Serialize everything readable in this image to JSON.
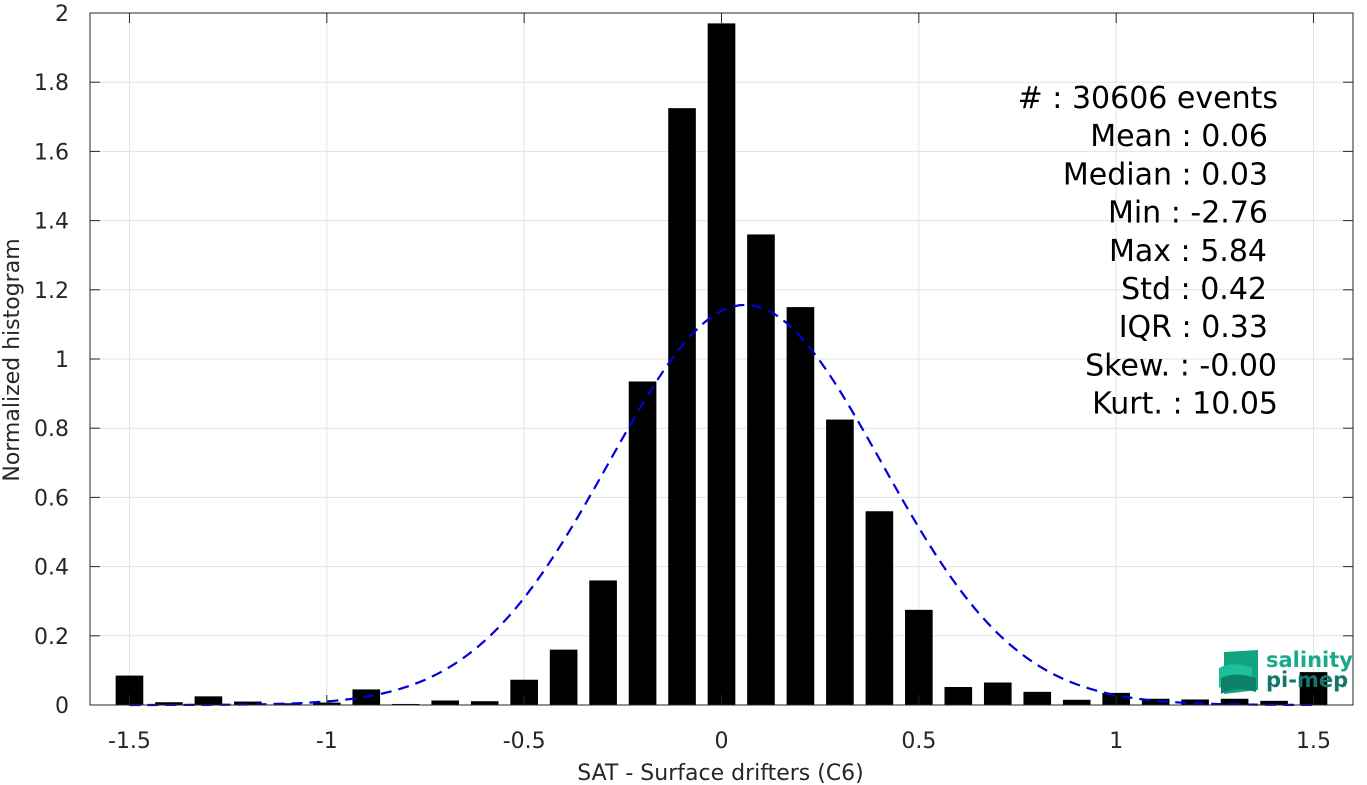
{
  "chart_data": {
    "type": "bar",
    "xlabel": "SAT - Surface drifters (C6)",
    "ylabel": "Normalized histogram",
    "xlim": [
      -1.6,
      1.6
    ],
    "ylim": [
      0,
      2
    ],
    "x_ticks": [
      -1.5,
      -1,
      -0.5,
      0,
      0.5,
      1,
      1.5
    ],
    "x_tick_labels": [
      "-1.5",
      "-1",
      "-0.5",
      "0",
      "0.5",
      "1",
      "1.5"
    ],
    "y_ticks": [
      0,
      0.2,
      0.4,
      0.6,
      0.8,
      1,
      1.2,
      1.4,
      1.6,
      1.8,
      2
    ],
    "y_tick_labels": [
      "0",
      "0.2",
      "0.4",
      "0.6",
      "0.8",
      "1",
      "1.2",
      "1.4",
      "1.6",
      "1.8",
      "2"
    ],
    "grid": true,
    "bar_width": 0.07,
    "bars": {
      "x": [
        -1.5,
        -1.4,
        -1.3,
        -1.2,
        -1.1,
        -1.0,
        -0.9,
        -0.8,
        -0.7,
        -0.6,
        -0.5,
        -0.4,
        -0.3,
        -0.2,
        -0.1,
        0.0,
        0.1,
        0.2,
        0.3,
        0.4,
        0.5,
        0.6,
        0.7,
        0.8,
        0.9,
        1.0,
        1.1,
        1.2,
        1.3,
        1.4,
        1.5
      ],
      "values": [
        0.085,
        0.008,
        0.025,
        0.01,
        0.005,
        0.007,
        0.045,
        0.003,
        0.013,
        0.011,
        0.073,
        0.16,
        0.36,
        0.935,
        1.725,
        1.97,
        1.36,
        1.15,
        0.825,
        0.56,
        0.275,
        0.052,
        0.065,
        0.038,
        0.015,
        0.035,
        0.018,
        0.016,
        0.018,
        0.012,
        0.095
      ],
      "color": "#000000"
    },
    "fit_curve": {
      "style": "dashed",
      "color": "#0000dd",
      "distribution": "normal",
      "mean": 0.06,
      "std": 0.345,
      "x_range": [
        -1.5,
        1.5
      ]
    },
    "stats_lines": [
      "#  : 30606 events",
      "Mean : 0.06",
      "Median : 0.03",
      "Min : -2.76",
      "Max : 5.84",
      "Std : 0.42",
      "IQR : 0.33",
      "Skew. : -0.00",
      "Kurt. : 10.05"
    ]
  },
  "logo": {
    "line1": "salinity",
    "line2": "pi-mep",
    "color1": "#1aa98a",
    "color2": "#15756a"
  }
}
